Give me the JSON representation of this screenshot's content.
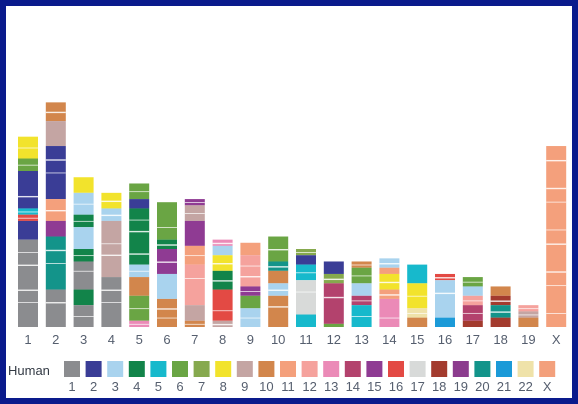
{
  "colors": {
    "1": "#8b8c8f",
    "2": "#3a3d96",
    "3": "#a9d3ee",
    "4": "#12844a",
    "5": "#17b9cc",
    "6": "#6aa544",
    "7": "#86a94e",
    "8": "#f2e32c",
    "9": "#c4a5a3",
    "10": "#d2864c",
    "11": "#f4a07c",
    "12": "#f5a29d",
    "13": "#eb8ab7",
    "14": "#b3426d",
    "15": "#8f3b93",
    "16": "#e34a44",
    "17": "#d8dad9",
    "18": "#a33b2e",
    "19": "#8c3c8e",
    "20": "#13948a",
    "21": "#1b9ad8",
    "22": "#efe2a9",
    "X": "#f3a07c"
  },
  "legend": {
    "title": "Human",
    "keys": [
      "1",
      "2",
      "3",
      "4",
      "5",
      "6",
      "7",
      "8",
      "9",
      "10",
      "11",
      "12",
      "13",
      "14",
      "15",
      "16",
      "17",
      "18",
      "19",
      "20",
      "21",
      "22",
      "X"
    ]
  },
  "chromosomes": [
    {
      "label": "1",
      "segments": [
        [
          "8",
          0.07
        ],
        [
          "6",
          0.04
        ],
        [
          "2",
          0.12
        ],
        [
          "5",
          0.02
        ],
        [
          "16",
          0.02
        ],
        [
          "2",
          0.06
        ],
        [
          "1",
          0.28
        ]
      ]
    },
    {
      "label": "2",
      "segments": [
        [
          "10",
          0.06
        ],
        [
          "9",
          0.08
        ],
        [
          "2",
          0.17
        ],
        [
          "11",
          0.07
        ],
        [
          "15",
          0.05
        ],
        [
          "20",
          0.17
        ],
        [
          "1",
          0.12
        ]
      ]
    },
    {
      "label": "3",
      "segments": [
        [
          "8",
          0.05
        ],
        [
          "3",
          0.07
        ],
        [
          "4",
          0.04
        ],
        [
          "3",
          0.07
        ],
        [
          "4",
          0.04
        ],
        [
          "1",
          0.09
        ],
        [
          "4",
          0.05
        ],
        [
          "1",
          0.07
        ]
      ]
    },
    {
      "label": "4",
      "segments": [
        [
          "8",
          0.05
        ],
        [
          "3",
          0.04
        ],
        [
          "9",
          0.18
        ],
        [
          "1",
          0.16
        ]
      ]
    },
    {
      "label": "5",
      "segments": [
        [
          "6",
          0.05
        ],
        [
          "2",
          0.03
        ],
        [
          "4",
          0.18
        ],
        [
          "3",
          0.04
        ],
        [
          "10",
          0.06
        ],
        [
          "6",
          0.08
        ],
        [
          "13",
          0.02
        ]
      ]
    },
    {
      "label": "6",
      "segments": [
        [
          "6",
          0.12
        ],
        [
          "4",
          0.03
        ],
        [
          "15",
          0.08
        ],
        [
          "3",
          0.08
        ],
        [
          "10",
          0.09
        ]
      ]
    },
    {
      "label": "7",
      "segments": [
        [
          "15",
          0.02
        ],
        [
          "9",
          0.05
        ],
        [
          "15",
          0.08
        ],
        [
          "11",
          0.06
        ],
        [
          "12",
          0.13
        ],
        [
          "9",
          0.05
        ],
        [
          "10",
          0.02
        ]
      ]
    },
    {
      "label": "8",
      "segments": [
        [
          "13",
          0.02
        ],
        [
          "3",
          0.03
        ],
        [
          "8",
          0.05
        ],
        [
          "4",
          0.06
        ],
        [
          "16",
          0.1
        ],
        [
          "9",
          0.02
        ]
      ]
    },
    {
      "label": "9",
      "segments": [
        [
          "11",
          0.04
        ],
        [
          "12",
          0.1
        ],
        [
          "15",
          0.03
        ],
        [
          "6",
          0.04
        ],
        [
          "3",
          0.06
        ]
      ]
    },
    {
      "label": "10",
      "segments": [
        [
          "6",
          0.08
        ],
        [
          "20",
          0.03
        ],
        [
          "10",
          0.04
        ],
        [
          "3",
          0.04
        ],
        [
          "10",
          0.1
        ]
      ]
    },
    {
      "label": "11",
      "segments": [
        [
          "7",
          0.02
        ],
        [
          "2",
          0.03
        ],
        [
          "5",
          0.05
        ],
        [
          "17",
          0.11
        ],
        [
          "5",
          0.04
        ]
      ]
    },
    {
      "label": "12",
      "segments": [
        [
          "2",
          0.04
        ],
        [
          "7",
          0.03
        ],
        [
          "14",
          0.13
        ],
        [
          "6",
          0.01
        ]
      ]
    },
    {
      "label": "13",
      "segments": [
        [
          "10",
          0.02
        ],
        [
          "6",
          0.05
        ],
        [
          "3",
          0.04
        ],
        [
          "14",
          0.03
        ],
        [
          "5",
          0.07
        ]
      ]
    },
    {
      "label": "14",
      "segments": [
        [
          "3",
          0.03
        ],
        [
          "11",
          0.02
        ],
        [
          "8",
          0.05
        ],
        [
          "11",
          0.03
        ],
        [
          "13",
          0.09
        ]
      ]
    },
    {
      "label": "15",
      "segments": [
        [
          "5",
          0.06
        ],
        [
          "8",
          0.08
        ],
        [
          "22",
          0.03
        ],
        [
          "10",
          0.03
        ]
      ]
    },
    {
      "label": "16",
      "segments": [
        [
          "16",
          0.02
        ],
        [
          "3",
          0.12
        ],
        [
          "21",
          0.03
        ]
      ]
    },
    {
      "label": "17",
      "segments": [
        [
          "6",
          0.03
        ],
        [
          "3",
          0.03
        ],
        [
          "12",
          0.03
        ],
        [
          "14",
          0.05
        ],
        [
          "18",
          0.02
        ]
      ]
    },
    {
      "label": "18",
      "segments": [
        [
          "10",
          0.03
        ],
        [
          "18",
          0.03
        ],
        [
          "20",
          0.04
        ],
        [
          "18",
          0.03
        ]
      ]
    },
    {
      "label": "19",
      "segments": [
        [
          "12",
          0.02
        ],
        [
          "9",
          0.02
        ],
        [
          "10",
          0.03
        ]
      ]
    },
    {
      "label": "X",
      "segments": [
        [
          "11",
          0.58
        ]
      ]
    }
  ]
}
